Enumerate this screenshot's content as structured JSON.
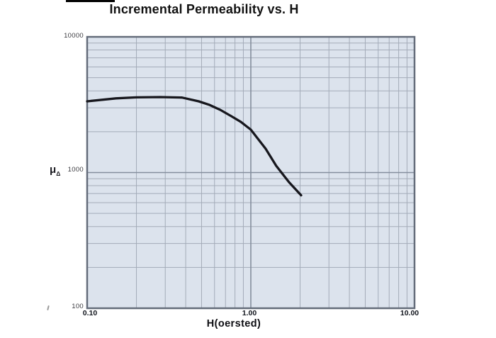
{
  "chart_data": {
    "type": "line",
    "title": "Incremental Permeability vs. H",
    "xlabel": "H(oersted)",
    "ylabel_mu": "μ",
    "ylabel_sub": "Δ",
    "x_scale": "log",
    "y_scale": "log",
    "xlim": [
      0.1,
      10
    ],
    "ylim": [
      100,
      10000
    ],
    "xticks": [
      "0.10",
      "1.00",
      "10.00"
    ],
    "yticks": [
      "10000",
      "1000",
      "100"
    ],
    "grid": "log major and minor gridlines, both axes",
    "legend": "none",
    "series": [
      {
        "name": "incremental-permeability-curve",
        "points": [
          [
            0.1,
            3350
          ],
          [
            0.15,
            3520
          ],
          [
            0.2,
            3580
          ],
          [
            0.28,
            3600
          ],
          [
            0.38,
            3570
          ],
          [
            0.48,
            3350
          ],
          [
            0.56,
            3150
          ],
          [
            0.65,
            2900
          ],
          [
            0.76,
            2600
          ],
          [
            0.87,
            2360
          ],
          [
            1.0,
            2070
          ],
          [
            1.23,
            1500
          ],
          [
            1.43,
            1120
          ],
          [
            1.71,
            850
          ],
          [
            2.03,
            680
          ]
        ]
      }
    ],
    "colors": {
      "plot_bg": "#dce3ed",
      "grid_minor": "#a3abb8",
      "grid_major": "#848e9d",
      "border": "#646c7a",
      "curve": "#17171d",
      "title_text": "#111111",
      "tick_text": "#3b3b40",
      "bold_tick_text": "#10141c"
    }
  }
}
